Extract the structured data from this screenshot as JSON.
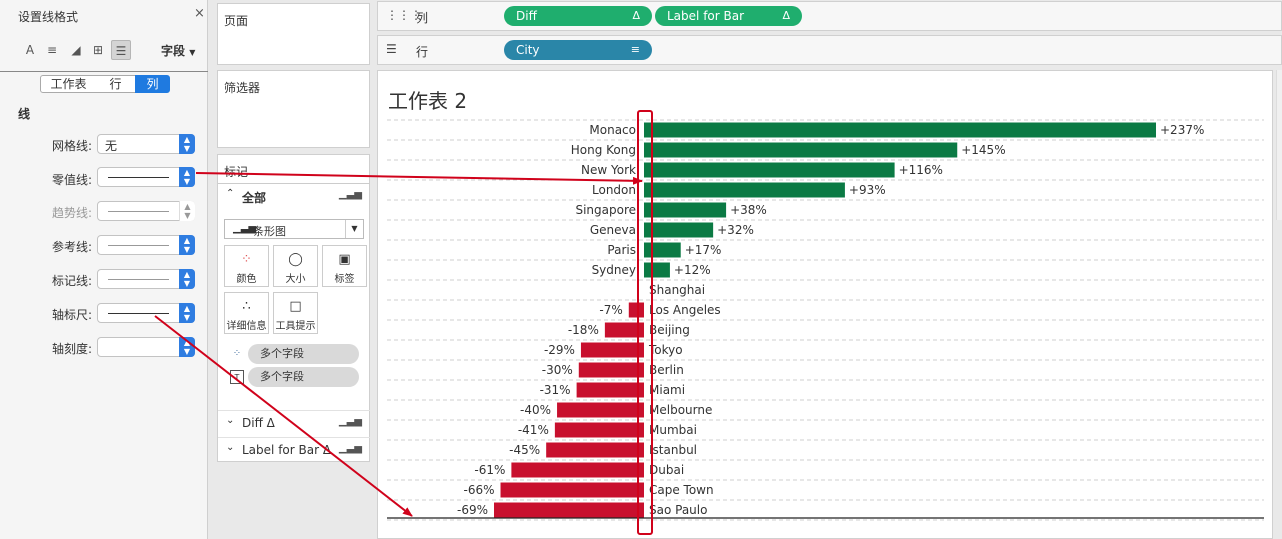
{
  "format_pane": {
    "title": "设置线格式",
    "close_glyph": "×",
    "field_menu": "字段",
    "tabs": [
      "工作表",
      "行",
      "列"
    ],
    "active_tab": "列",
    "section": "线",
    "rows": [
      {
        "label": "网格线:",
        "value": "无",
        "style": "text",
        "enabled": true
      },
      {
        "label": "零值线:",
        "value": "",
        "style": "line",
        "enabled": true
      },
      {
        "label": "趋势线:",
        "value": "",
        "style": "line",
        "enabled": false
      },
      {
        "label": "参考线:",
        "value": "",
        "style": "line",
        "enabled": true
      },
      {
        "label": "标记线:",
        "value": "",
        "style": "line",
        "enabled": true
      },
      {
        "label": "轴标尺:",
        "value": "",
        "style": "line-dark",
        "enabled": true
      },
      {
        "label": "轴刻度:",
        "value": "",
        "style": "empty",
        "enabled": true
      }
    ]
  },
  "cards": {
    "pages": "页面",
    "filters": "筛选器",
    "marks": "标记"
  },
  "marks": {
    "all_label": "全部",
    "mark_type": "条形图",
    "buttons": [
      {
        "label": "颜色",
        "icon": "color-icon"
      },
      {
        "label": "大小",
        "icon": "size-icon"
      },
      {
        "label": "标签",
        "icon": "label-icon"
      },
      {
        "label": "详细信息",
        "icon": "detail-icon"
      },
      {
        "label": "工具提示",
        "icon": "tooltip-icon"
      }
    ],
    "fields": [
      "多个字段",
      "多个字段"
    ],
    "sub_cards": [
      "Diff",
      "Label for Bar"
    ],
    "delta_glyph": "Δ"
  },
  "shelves": {
    "columns_label": "列",
    "rows_label": "行",
    "column_pills": [
      "Diff",
      "Label for Bar"
    ],
    "row_pills": [
      "City"
    ]
  },
  "worksheet": {
    "title": "工作表 2"
  },
  "colors": {
    "positive": "#0b7a44",
    "negative": "#c8102e",
    "accent": "#1f7ae0",
    "annotation": "#d0021b"
  },
  "chart_data": {
    "type": "bar",
    "orientation": "horizontal",
    "categories": [
      "Monaco",
      "Hong Kong",
      "New York",
      "London",
      "Singapore",
      "Geneva",
      "Paris",
      "Sydney",
      "Shanghai",
      "Los Angeles",
      "Beijing",
      "Tokyo",
      "Berlin",
      "Miami",
      "Melbourne",
      "Mumbai",
      "Istanbul",
      "Dubai",
      "Cape Town",
      "Sao Paulo"
    ],
    "values": [
      237,
      145,
      116,
      93,
      38,
      32,
      17,
      12,
      0,
      -7,
      -18,
      -29,
      -30,
      -31,
      -40,
      -41,
      -45,
      -61,
      -66,
      -69
    ],
    "labels": [
      "+237%",
      "+145%",
      "+116%",
      "+93%",
      "+38%",
      "+32%",
      "+17%",
      "+12%",
      "",
      "-7%",
      "-18%",
      "-29%",
      "-30%",
      "-31%",
      "-40%",
      "-41%",
      "-45%",
      "-61%",
      "-66%",
      "-69%"
    ],
    "xlim": [
      -69,
      237
    ]
  }
}
